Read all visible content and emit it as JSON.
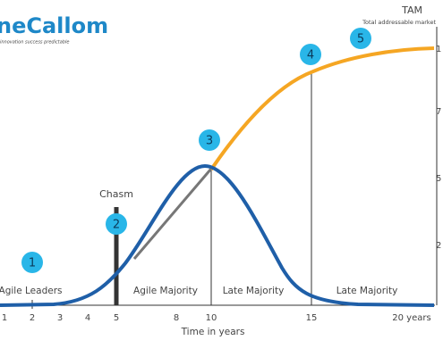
{
  "logo": {
    "name": "neCallom",
    "tagline": "innovation success predictable"
  },
  "market": {
    "title": "TAM",
    "subtitle": "Total addressable market"
  },
  "right_axis_labels": [
    "1",
    "7",
    "5",
    "2"
  ],
  "steps": [
    "1",
    "2",
    "3",
    "4",
    "5"
  ],
  "labels": {
    "chasm": "Chasm",
    "phases": [
      "Agile Leaders",
      "Agile Majority",
      "Late Majority",
      "Late Majority"
    ]
  },
  "x_axis": {
    "title": "Time in years",
    "ticks": [
      "1",
      "2",
      "3",
      "4",
      "5",
      "8",
      "10",
      "15",
      "20 years"
    ]
  }
}
